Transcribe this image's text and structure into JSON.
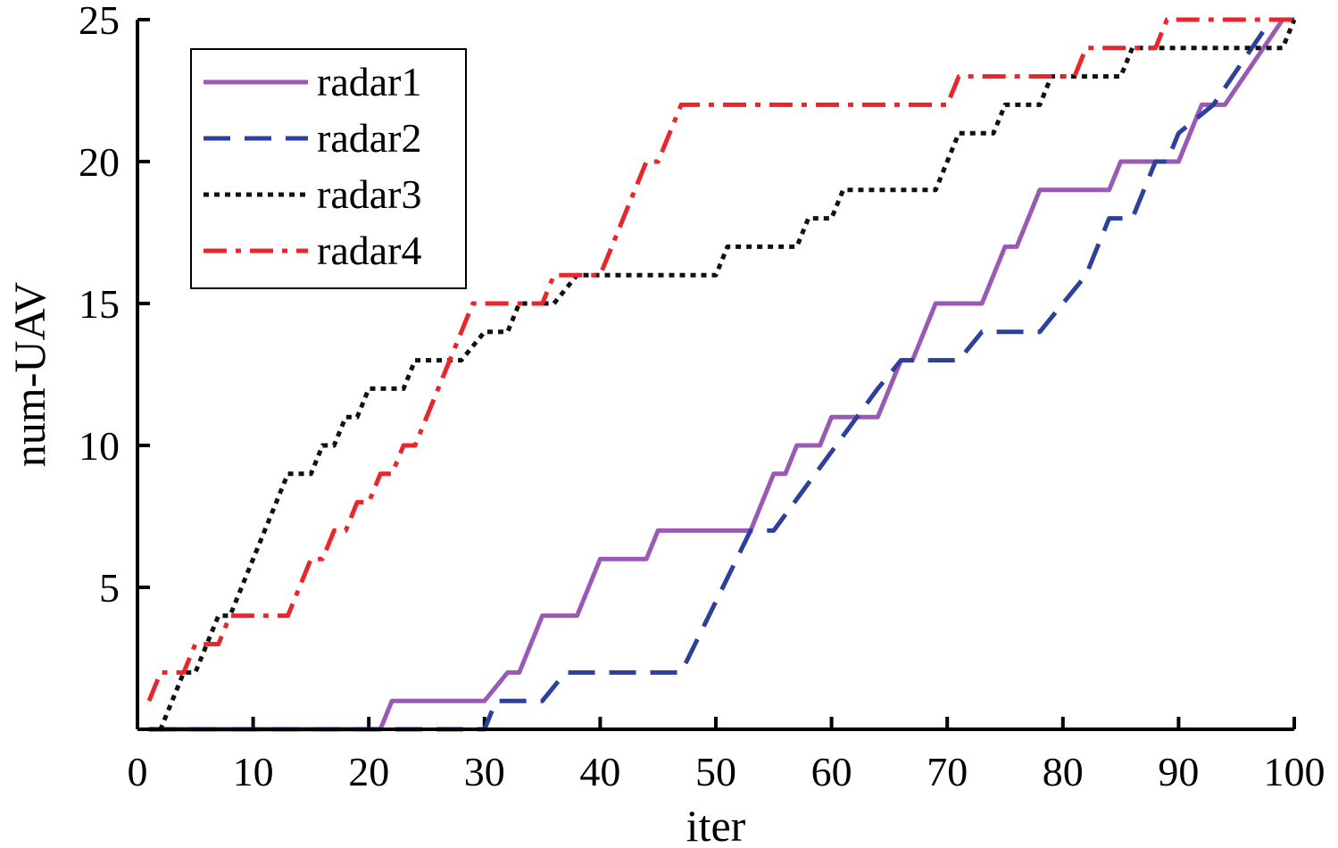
{
  "chart_data": {
    "type": "line",
    "title": "",
    "xlabel": "iter",
    "ylabel": "num-UAV",
    "xlim": [
      0,
      100
    ],
    "ylim": [
      0,
      25
    ],
    "xticks": [
      "0",
      "10",
      "20",
      "30",
      "40",
      "50",
      "60",
      "70",
      "80",
      "90",
      "100"
    ],
    "yticks": [
      "5",
      "10",
      "15",
      "20",
      "25"
    ],
    "grid": false,
    "legend_position": "top-left",
    "series": [
      {
        "name": "radar1",
        "color": "#9b59b6",
        "dash": "solid",
        "points": [
          [
            1,
            0
          ],
          [
            21,
            0
          ],
          [
            22,
            1
          ],
          [
            30,
            1
          ],
          [
            32,
            2
          ],
          [
            33,
            2
          ],
          [
            35,
            4
          ],
          [
            38,
            4
          ],
          [
            40,
            6
          ],
          [
            44,
            6
          ],
          [
            45,
            7
          ],
          [
            53,
            7
          ],
          [
            55,
            9
          ],
          [
            56,
            9
          ],
          [
            57,
            10
          ],
          [
            59,
            10
          ],
          [
            60,
            11
          ],
          [
            64,
            11
          ],
          [
            66,
            13
          ],
          [
            67,
            13
          ],
          [
            69,
            15
          ],
          [
            73,
            15
          ],
          [
            75,
            17
          ],
          [
            76,
            17
          ],
          [
            78,
            19
          ],
          [
            84,
            19
          ],
          [
            85,
            20
          ],
          [
            90,
            20
          ],
          [
            92,
            22
          ],
          [
            94,
            22
          ],
          [
            99,
            25
          ],
          [
            100,
            25
          ]
        ]
      },
      {
        "name": "radar2",
        "color": "#2e3f9c",
        "dash": "dashed",
        "points": [
          [
            1,
            0
          ],
          [
            30,
            0
          ],
          [
            31,
            1
          ],
          [
            35,
            1
          ],
          [
            37,
            2
          ],
          [
            47,
            2
          ],
          [
            53,
            7
          ],
          [
            55,
            7
          ],
          [
            64,
            12
          ],
          [
            66,
            13
          ],
          [
            71,
            13
          ],
          [
            73,
            14
          ],
          [
            78,
            14
          ],
          [
            82,
            16
          ],
          [
            84,
            18
          ],
          [
            86,
            18
          ],
          [
            88,
            20
          ],
          [
            89,
            20
          ],
          [
            90,
            21
          ],
          [
            93,
            22
          ],
          [
            98,
            25
          ],
          [
            100,
            25
          ]
        ]
      },
      {
        "name": "radar3",
        "color": "#111111",
        "dash": "dotted",
        "points": [
          [
            1,
            0
          ],
          [
            2,
            0
          ],
          [
            4,
            2
          ],
          [
            5,
            2
          ],
          [
            7,
            4
          ],
          [
            8,
            4
          ],
          [
            10,
            6
          ],
          [
            13,
            9
          ],
          [
            15,
            9
          ],
          [
            16,
            10
          ],
          [
            17,
            10
          ],
          [
            18,
            11
          ],
          [
            19,
            11
          ],
          [
            20,
            12
          ],
          [
            23,
            12
          ],
          [
            24,
            13
          ],
          [
            28,
            13
          ],
          [
            30,
            14
          ],
          [
            32,
            14
          ],
          [
            33,
            15
          ],
          [
            36,
            15
          ],
          [
            38,
            16
          ],
          [
            50,
            16
          ],
          [
            51,
            17
          ],
          [
            57,
            17
          ],
          [
            58,
            18
          ],
          [
            60,
            18
          ],
          [
            61,
            19
          ],
          [
            69,
            19
          ],
          [
            70,
            20
          ],
          [
            71,
            21
          ],
          [
            74,
            21
          ],
          [
            75,
            22
          ],
          [
            78,
            22
          ],
          [
            79,
            23
          ],
          [
            85,
            23
          ],
          [
            86,
            24
          ],
          [
            99,
            24
          ],
          [
            100,
            25
          ]
        ]
      },
      {
        "name": "radar4",
        "color": "#e8262b",
        "dash": "dashdot",
        "points": [
          [
            1,
            1
          ],
          [
            2,
            2
          ],
          [
            4,
            2
          ],
          [
            5,
            3
          ],
          [
            7,
            3
          ],
          [
            8,
            4
          ],
          [
            13,
            4
          ],
          [
            15,
            6
          ],
          [
            16,
            6
          ],
          [
            17,
            7
          ],
          [
            18,
            7
          ],
          [
            19,
            8
          ],
          [
            20,
            8
          ],
          [
            21,
            9
          ],
          [
            22,
            9
          ],
          [
            23,
            10
          ],
          [
            24,
            10
          ],
          [
            29,
            15
          ],
          [
            35,
            15
          ],
          [
            36,
            16
          ],
          [
            40,
            16
          ],
          [
            44,
            20
          ],
          [
            45,
            20
          ],
          [
            47,
            22
          ],
          [
            70,
            22
          ],
          [
            71,
            23
          ],
          [
            81,
            23
          ],
          [
            82,
            24
          ],
          [
            88,
            24
          ],
          [
            89,
            25
          ],
          [
            100,
            25
          ]
        ]
      }
    ]
  }
}
